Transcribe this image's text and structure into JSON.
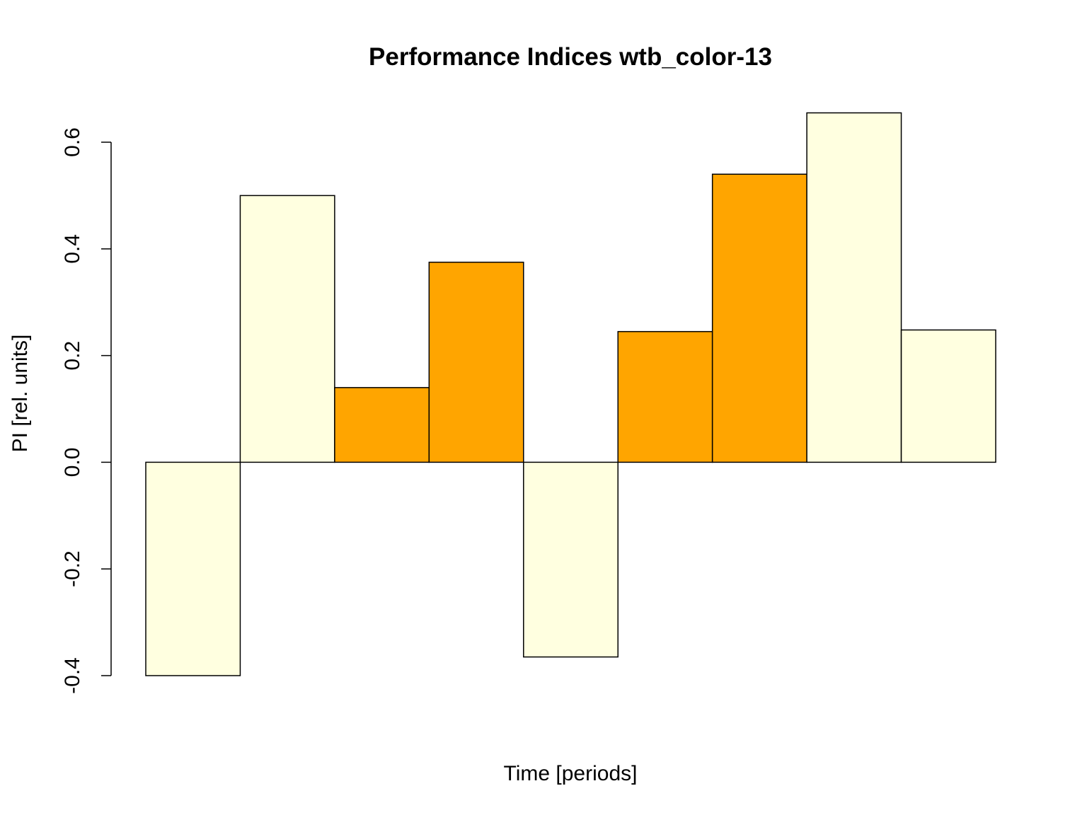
{
  "chart_data": {
    "type": "bar",
    "title": "Performance Indices wtb_color-13",
    "xlabel": "Time [periods]",
    "ylabel": "PI [rel. units]",
    "ylim": [
      -0.4,
      0.6
    ],
    "y_ticks": [
      "-0.4",
      "-0.2",
      "0.0",
      "0.2",
      "0.4",
      "0.6"
    ],
    "grid": false,
    "legend": "none",
    "colors": {
      "light": "#FFFFE0",
      "orange": "#FFA500",
      "border": "#000000"
    },
    "values": [
      -0.4,
      0.5,
      0.14,
      0.375,
      -0.365,
      0.245,
      0.54,
      0.655,
      0.248
    ],
    "bar_colors": [
      "light",
      "light",
      "orange",
      "orange",
      "light",
      "orange",
      "orange",
      "light",
      "light"
    ]
  }
}
